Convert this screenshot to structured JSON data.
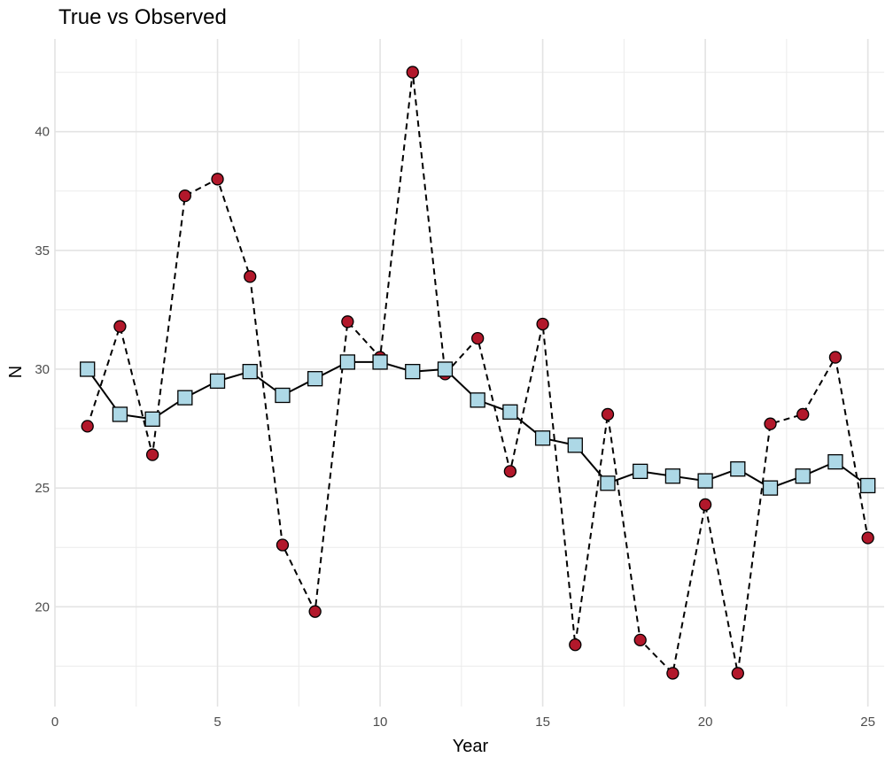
{
  "chart_data": {
    "type": "line",
    "title": "True vs Observed",
    "xlabel": "Year",
    "ylabel": "N",
    "xlim": [
      0,
      25.5
    ],
    "ylim": [
      15.8,
      43.9
    ],
    "x_ticks": [
      0,
      5,
      10,
      15,
      20,
      25
    ],
    "y_ticks": [
      20,
      25,
      30,
      35,
      40
    ],
    "grid": true,
    "legend": "none",
    "x": [
      1,
      2,
      3,
      4,
      5,
      6,
      7,
      8,
      9,
      10,
      11,
      12,
      13,
      14,
      15,
      16,
      17,
      18,
      19,
      20,
      21,
      22,
      23,
      24,
      25
    ],
    "series": [
      {
        "line": "solid",
        "marker": "square",
        "fill": "#add8e6",
        "values": [
          30.0,
          28.1,
          27.9,
          28.8,
          29.5,
          29.9,
          28.9,
          29.6,
          30.3,
          30.3,
          29.9,
          30.0,
          28.7,
          28.2,
          27.1,
          26.8,
          25.2,
          25.7,
          25.5,
          25.3,
          25.8,
          25.0,
          25.5,
          26.1,
          25.1
        ]
      },
      {
        "line": "dashed",
        "marker": "circle",
        "fill": "#b2182b",
        "values": [
          27.6,
          31.8,
          26.4,
          37.3,
          38.0,
          33.9,
          22.6,
          19.8,
          32.0,
          30.5,
          42.5,
          29.8,
          31.3,
          25.7,
          31.9,
          18.4,
          28.1,
          18.6,
          17.2,
          24.3,
          17.2,
          27.7,
          28.1,
          30.5,
          22.9
        ]
      }
    ]
  }
}
